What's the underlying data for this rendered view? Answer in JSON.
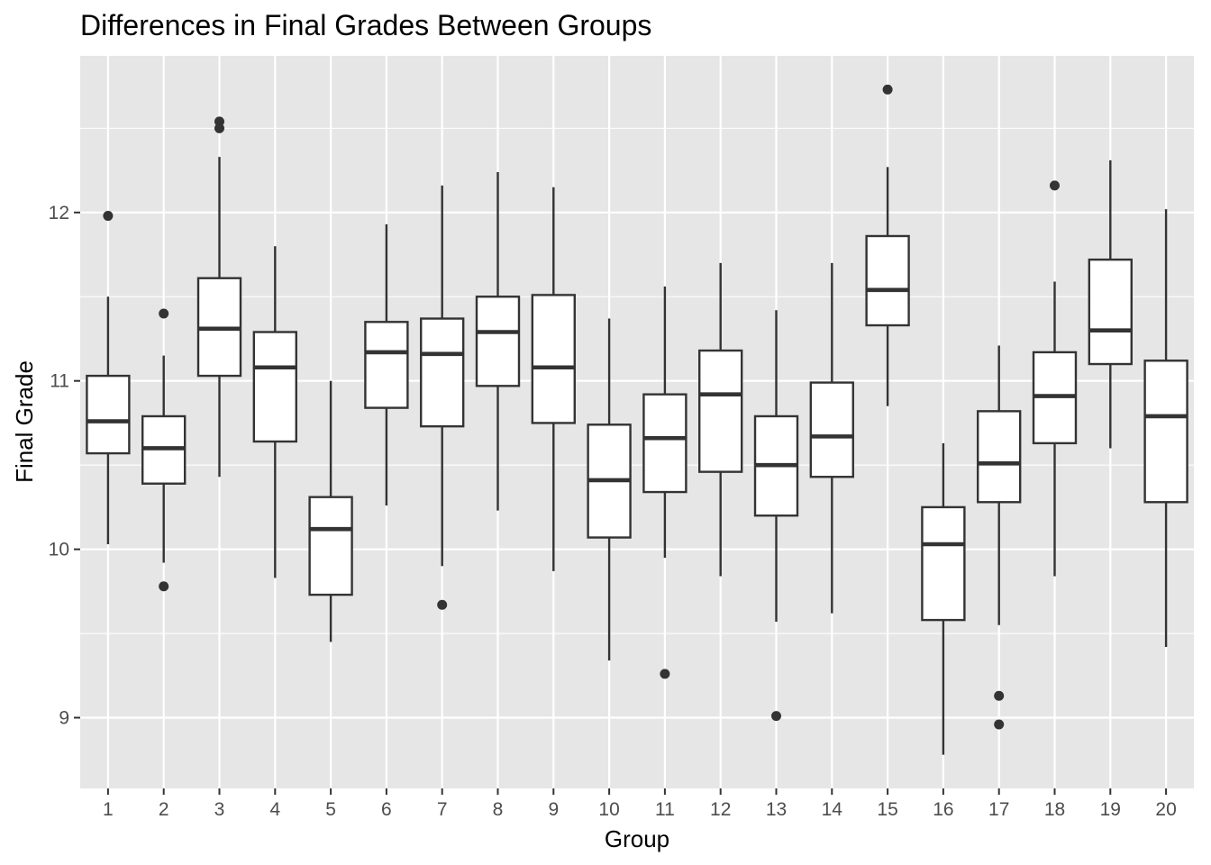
{
  "chart_data": {
    "type": "boxplot",
    "title": "Differences in Final Grades Between Groups",
    "xlabel": "Group",
    "ylabel": "Final Grade",
    "ylim": [
      8.58,
      12.93
    ],
    "yticks": [
      9,
      10,
      11,
      12
    ],
    "grid": true,
    "legend": "none",
    "colors": {
      "panel": "#e6e6e6",
      "grid": "#ffffff",
      "box_fill": "#ffffff",
      "box_line": "#333333",
      "tick_label": "#4d4d4d"
    },
    "categories": [
      "1",
      "2",
      "3",
      "4",
      "5",
      "6",
      "7",
      "8",
      "9",
      "10",
      "11",
      "12",
      "13",
      "14",
      "15",
      "16",
      "17",
      "18",
      "19",
      "20"
    ],
    "boxes": [
      {
        "group": "1",
        "lower": 10.03,
        "q1": 10.57,
        "median": 10.76,
        "q3": 11.03,
        "upper": 11.5,
        "outliers": [
          11.98
        ]
      },
      {
        "group": "2",
        "lower": 9.92,
        "q1": 10.39,
        "median": 10.6,
        "q3": 10.79,
        "upper": 11.15,
        "outliers": [
          11.4,
          9.78
        ]
      },
      {
        "group": "3",
        "lower": 10.43,
        "q1": 11.03,
        "median": 11.31,
        "q3": 11.61,
        "upper": 12.33,
        "outliers": [
          12.54,
          12.5
        ]
      },
      {
        "group": "4",
        "lower": 9.83,
        "q1": 10.64,
        "median": 11.08,
        "q3": 11.29,
        "upper": 11.8,
        "outliers": []
      },
      {
        "group": "5",
        "lower": 9.45,
        "q1": 9.73,
        "median": 10.12,
        "q3": 10.31,
        "upper": 11.0,
        "outliers": []
      },
      {
        "group": "6",
        "lower": 10.26,
        "q1": 10.84,
        "median": 11.17,
        "q3": 11.35,
        "upper": 11.93,
        "outliers": []
      },
      {
        "group": "7",
        "lower": 9.9,
        "q1": 10.73,
        "median": 11.16,
        "q3": 11.37,
        "upper": 12.16,
        "outliers": [
          9.67
        ]
      },
      {
        "group": "8",
        "lower": 10.23,
        "q1": 10.97,
        "median": 11.29,
        "q3": 11.5,
        "upper": 12.24,
        "outliers": []
      },
      {
        "group": "9",
        "lower": 9.87,
        "q1": 10.75,
        "median": 11.08,
        "q3": 11.51,
        "upper": 12.15,
        "outliers": []
      },
      {
        "group": "10",
        "lower": 9.34,
        "q1": 10.07,
        "median": 10.41,
        "q3": 10.74,
        "upper": 11.37,
        "outliers": []
      },
      {
        "group": "11",
        "lower": 9.95,
        "q1": 10.34,
        "median": 10.66,
        "q3": 10.92,
        "upper": 11.56,
        "outliers": [
          9.26
        ]
      },
      {
        "group": "12",
        "lower": 9.84,
        "q1": 10.46,
        "median": 10.92,
        "q3": 11.18,
        "upper": 11.7,
        "outliers": []
      },
      {
        "group": "13",
        "lower": 9.57,
        "q1": 10.2,
        "median": 10.5,
        "q3": 10.79,
        "upper": 11.42,
        "outliers": [
          9.01
        ]
      },
      {
        "group": "14",
        "lower": 9.62,
        "q1": 10.43,
        "median": 10.67,
        "q3": 10.99,
        "upper": 11.7,
        "outliers": []
      },
      {
        "group": "15",
        "lower": 10.85,
        "q1": 11.33,
        "median": 11.54,
        "q3": 11.86,
        "upper": 12.27,
        "outliers": [
          12.73
        ]
      },
      {
        "group": "16",
        "lower": 8.78,
        "q1": 9.58,
        "median": 10.03,
        "q3": 10.25,
        "upper": 10.63,
        "outliers": []
      },
      {
        "group": "17",
        "lower": 9.55,
        "q1": 10.28,
        "median": 10.51,
        "q3": 10.82,
        "upper": 11.21,
        "outliers": [
          9.13,
          8.96
        ]
      },
      {
        "group": "18",
        "lower": 9.84,
        "q1": 10.63,
        "median": 10.91,
        "q3": 11.17,
        "upper": 11.59,
        "outliers": [
          12.16
        ]
      },
      {
        "group": "19",
        "lower": 10.6,
        "q1": 11.1,
        "median": 11.3,
        "q3": 11.72,
        "upper": 12.31,
        "outliers": []
      },
      {
        "group": "20",
        "lower": 9.42,
        "q1": 10.28,
        "median": 10.79,
        "q3": 11.12,
        "upper": 12.02,
        "outliers": []
      }
    ]
  }
}
